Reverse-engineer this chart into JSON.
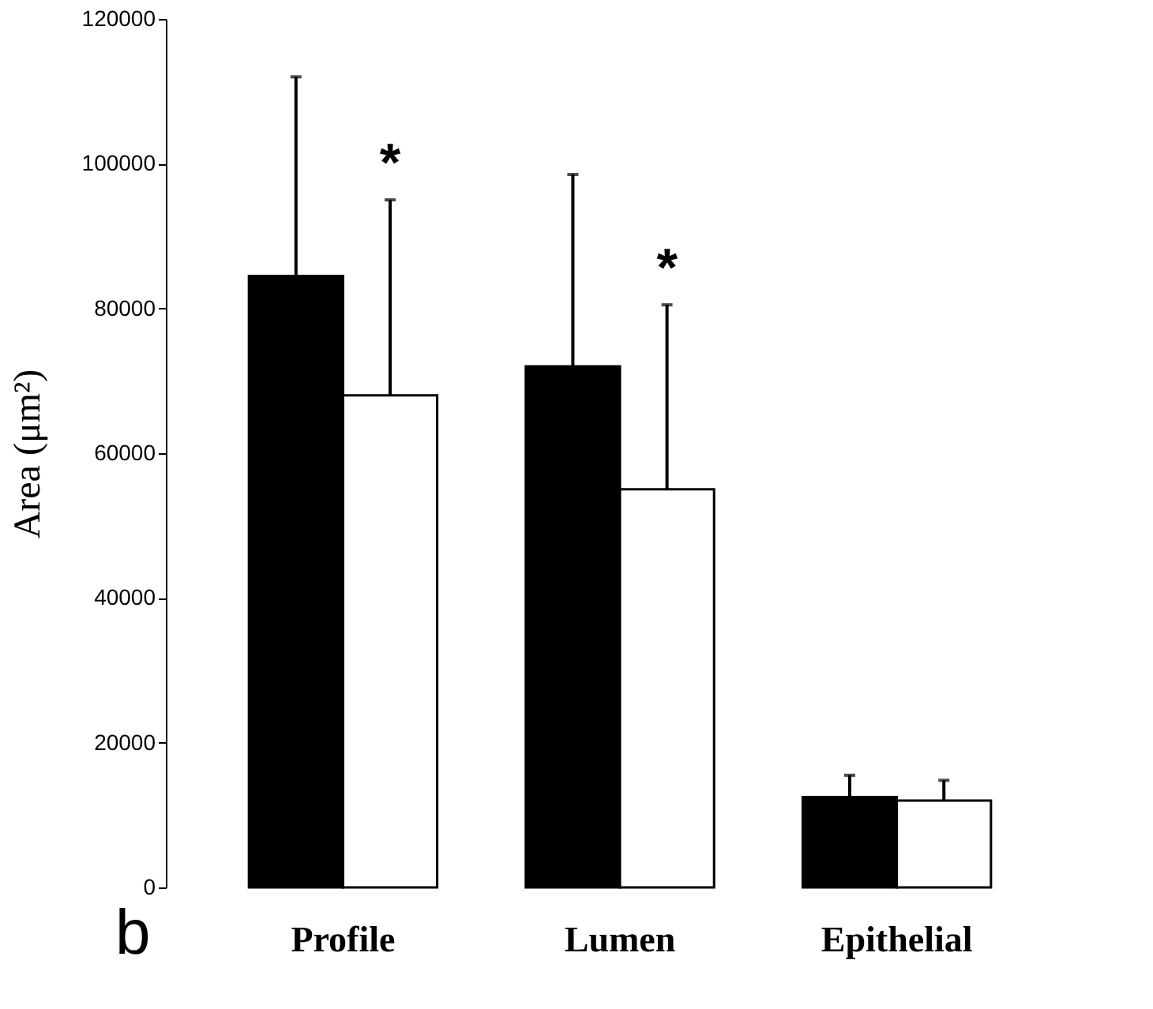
{
  "chart_data": {
    "type": "bar",
    "ylabel": "Area (μm²)",
    "categories": [
      "Profile",
      "Lumen",
      "Epithelial"
    ],
    "series": [
      {
        "color": "#000000",
        "values": [
          84500,
          72000,
          12500
        ],
        "errors": [
          [
            84500,
            112000
          ],
          [
            72000,
            98500
          ],
          [
            12500,
            15500
          ]
        ]
      },
      {
        "color": "#ffffff",
        "values": [
          68000,
          55000,
          12000
        ],
        "errors": [
          [
            68000,
            95000
          ],
          [
            55000,
            80500
          ],
          [
            12000,
            14800
          ]
        ]
      }
    ],
    "ylim": [
      0,
      120000
    ],
    "yticks": [
      0,
      20000,
      40000,
      60000,
      80000,
      100000,
      120000
    ],
    "grid": false,
    "legend": false,
    "annotations": [
      "*",
      "*",
      "b"
    ]
  }
}
